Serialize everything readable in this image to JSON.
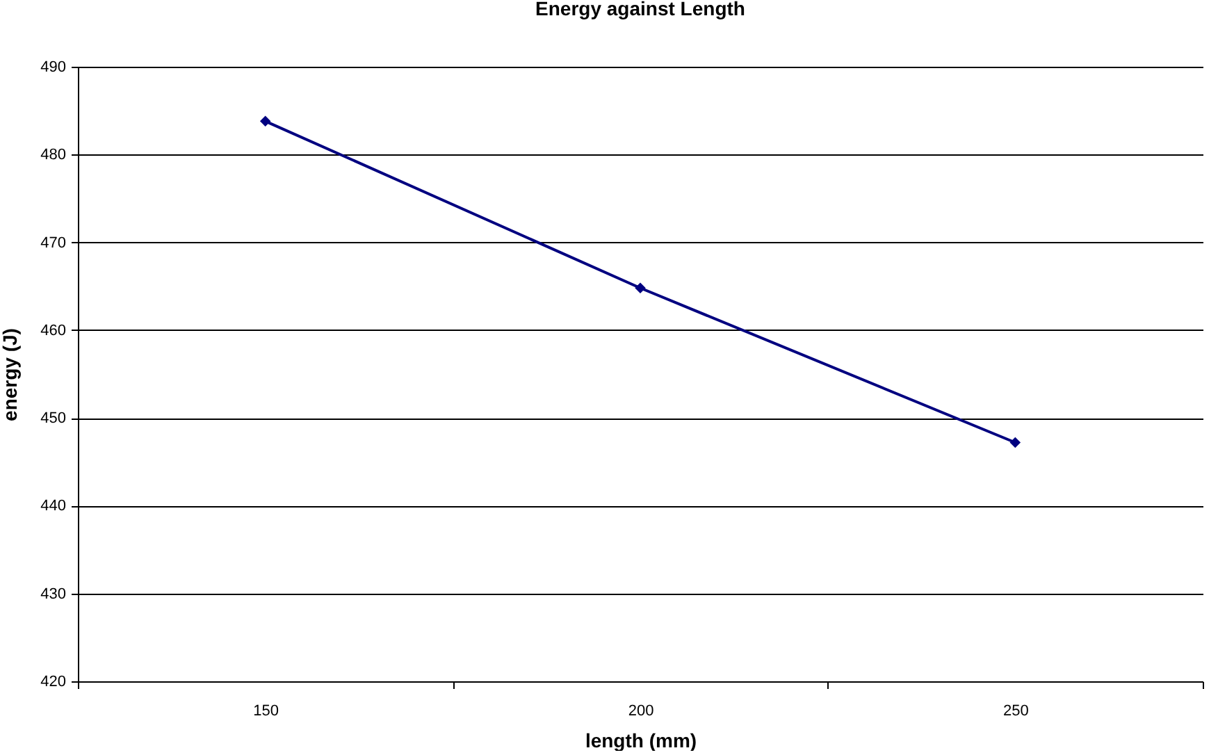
{
  "chart_data": {
    "type": "line",
    "title": "Energy against Length",
    "xlabel": "length (mm)",
    "ylabel": "energy (J)",
    "categories": [
      "150",
      "200",
      "250"
    ],
    "series": [
      {
        "color": "#000080",
        "values": [
          483.8,
          464.8,
          447.2
        ]
      }
    ],
    "ylim": [
      420,
      490
    ],
    "yticks": [
      420,
      430,
      440,
      450,
      460,
      470,
      480,
      490
    ],
    "grid": "y",
    "marker": "diamond",
    "line_style": "solid"
  }
}
